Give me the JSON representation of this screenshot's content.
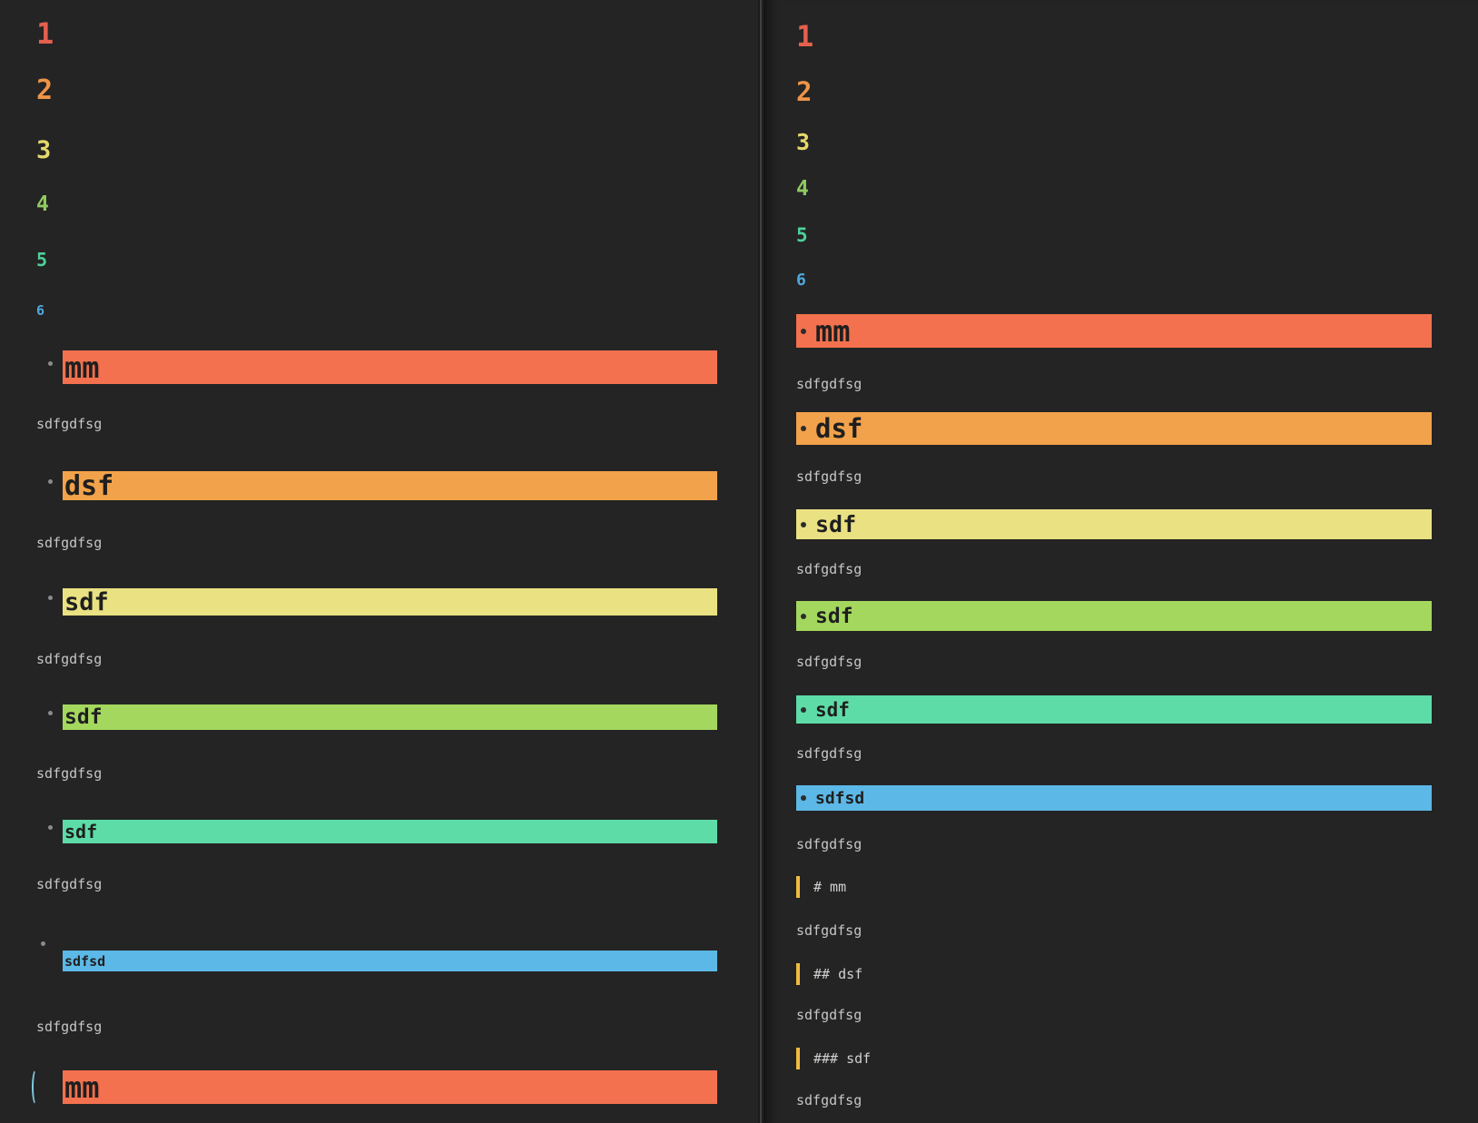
{
  "palette": {
    "background": "#242424",
    "heading_bar_colors": [
      "#f3714e",
      "#f2a24a",
      "#e9e182",
      "#a3d75e",
      "#5ddca7",
      "#5cb8e6"
    ],
    "heading_text_colors": [
      "#e4604d",
      "#ee9447",
      "#e6d96c",
      "#8fcb5f",
      "#4fd099",
      "#4fa8dc"
    ],
    "body_text_color": "#c6c6c6",
    "bar_text_color": "#1f1f1f",
    "raw_heading_border_color": "#efbc42",
    "fold_dot_color": "#8b8b8b",
    "cursor_color": "#7fcbe0"
  },
  "panes": {
    "left": {
      "rows": [
        {
          "type": "heading-number",
          "level": 1,
          "text": "1"
        },
        {
          "type": "heading-number",
          "level": 2,
          "text": "2"
        },
        {
          "type": "heading-number",
          "level": 3,
          "text": "3"
        },
        {
          "type": "heading-number",
          "level": 4,
          "text": "4"
        },
        {
          "type": "heading-number",
          "level": 5,
          "text": "5"
        },
        {
          "type": "heading-number",
          "level": 6,
          "text": "6"
        },
        {
          "type": "heading-bar",
          "level": 1,
          "text": "mm",
          "marker": "fold-dot"
        },
        {
          "type": "body",
          "text": "sdfgdfsg"
        },
        {
          "type": "heading-bar",
          "level": 2,
          "text": "dsf",
          "marker": "fold-dot"
        },
        {
          "type": "body",
          "text": "sdfgdfsg"
        },
        {
          "type": "heading-bar",
          "level": 3,
          "text": "sdf",
          "marker": "fold-dot"
        },
        {
          "type": "body",
          "text": "sdfgdfsg"
        },
        {
          "type": "heading-bar",
          "level": 4,
          "text": "sdf",
          "marker": "fold-dot"
        },
        {
          "type": "body",
          "text": "sdfgdfsg"
        },
        {
          "type": "heading-bar",
          "level": 5,
          "text": "sdf",
          "marker": "fold-dot"
        },
        {
          "type": "body",
          "text": "sdfgdfsg"
        },
        {
          "type": "heading-bar",
          "level": 6,
          "text": "sdfsd",
          "marker": "fold-dot-above"
        },
        {
          "type": "body",
          "text": "sdfgdfsg"
        },
        {
          "type": "heading-bar",
          "level": 1,
          "text": "mm",
          "marker": "cursor"
        }
      ]
    },
    "right": {
      "rows": [
        {
          "type": "heading-number",
          "level": 1,
          "text": "1"
        },
        {
          "type": "heading-number",
          "level": 2,
          "text": "2"
        },
        {
          "type": "heading-number",
          "level": 3,
          "text": "3"
        },
        {
          "type": "heading-number",
          "level": 4,
          "text": "4"
        },
        {
          "type": "heading-number",
          "level": 5,
          "text": "5"
        },
        {
          "type": "heading-number",
          "level": 6,
          "text": "6"
        },
        {
          "type": "heading-bar",
          "level": 1,
          "text": "mm",
          "marker": "bullet"
        },
        {
          "type": "body",
          "text": "sdfgdfsg"
        },
        {
          "type": "heading-bar",
          "level": 2,
          "text": "dsf",
          "marker": "bullet"
        },
        {
          "type": "body",
          "text": "sdfgdfsg"
        },
        {
          "type": "heading-bar",
          "level": 3,
          "text": "sdf",
          "marker": "bullet"
        },
        {
          "type": "body",
          "text": "sdfgdfsg"
        },
        {
          "type": "heading-bar",
          "level": 4,
          "text": "sdf",
          "marker": "bullet"
        },
        {
          "type": "body",
          "text": "sdfgdfsg"
        },
        {
          "type": "heading-bar",
          "level": 5,
          "text": "sdf",
          "marker": "bullet"
        },
        {
          "type": "body",
          "text": "sdfgdfsg"
        },
        {
          "type": "heading-bar",
          "level": 6,
          "text": "sdfsd",
          "marker": "bullet"
        },
        {
          "type": "body",
          "text": "sdfgdfsg"
        },
        {
          "type": "raw-heading",
          "level": 1,
          "text": "# mm"
        },
        {
          "type": "body",
          "text": "sdfgdfsg"
        },
        {
          "type": "raw-heading",
          "level": 2,
          "text": "## dsf"
        },
        {
          "type": "body",
          "text": "sdfgdfsg"
        },
        {
          "type": "raw-heading",
          "level": 3,
          "text": "### sdf"
        },
        {
          "type": "body",
          "text": "sdfgdfsg"
        }
      ]
    }
  }
}
